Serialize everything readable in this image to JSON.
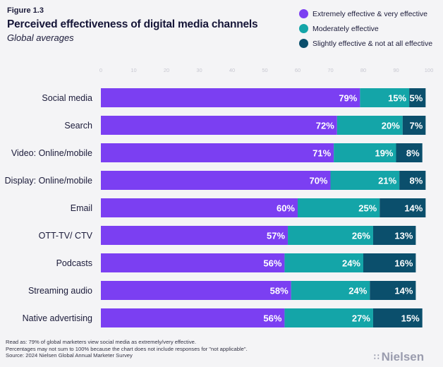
{
  "header": {
    "figure_label": "Figure 1.3",
    "title": "Perceived effectiveness of digital media channels",
    "subtitle": "Global averages"
  },
  "chart_data": {
    "type": "bar",
    "orientation": "horizontal",
    "stacked": true,
    "categories": [
      "Social media",
      "Search",
      "Video: Online/mobile",
      "Display: Online/mobile",
      "Email",
      "OTT-TV/ CTV",
      "Podcasts",
      "Streaming audio",
      "Native advertising"
    ],
    "series": [
      {
        "name": "Extremely effective & very effective",
        "color": "#7b3ff2",
        "values": [
          79,
          72,
          71,
          70,
          60,
          57,
          56,
          58,
          56
        ]
      },
      {
        "name": "Moderately effective",
        "color": "#14a5a8",
        "values": [
          15,
          20,
          19,
          21,
          25,
          26,
          24,
          24,
          27
        ]
      },
      {
        "name": "Slightly effective & not at all effective",
        "color": "#0b4f6c",
        "values": [
          5,
          7,
          8,
          8,
          14,
          13,
          16,
          14,
          15
        ]
      }
    ],
    "xlim": [
      0,
      100
    ],
    "xticks": [
      0,
      10,
      20,
      30,
      40,
      50,
      60,
      70,
      80,
      90,
      100
    ],
    "value_suffix": "%",
    "legend_position": "top-right"
  },
  "footer": {
    "line1": "Read as: 79% of global marketers view social media as extremely/very effective.",
    "line2": "Percentages may not sum to 100% because the chart does not include responses for \"not applicable\".",
    "line3": "Source: 2024 Nielsen Global Annual Marketer Survey"
  },
  "brand": {
    "icon": "∷",
    "name": "Nielsen"
  }
}
